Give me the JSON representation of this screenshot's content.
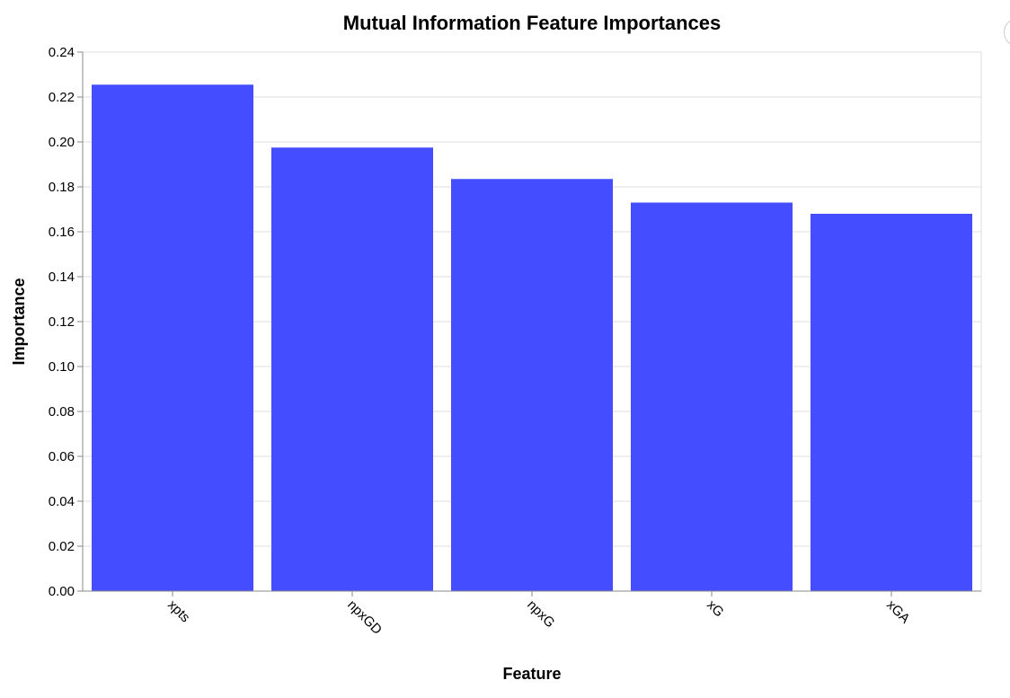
{
  "chart_data": {
    "type": "bar",
    "title": "Mutual Information Feature Importances",
    "xlabel": "Feature",
    "ylabel": "Importance",
    "categories": [
      "xpts",
      "npxGD",
      "npxG",
      "xG",
      "xGA"
    ],
    "values": [
      0.2255,
      0.1975,
      0.1835,
      0.173,
      0.168
    ],
    "ylim": [
      0,
      0.24
    ],
    "yticks": [
      "0.00",
      "0.02",
      "0.04",
      "0.06",
      "0.08",
      "0.10",
      "0.12",
      "0.14",
      "0.16",
      "0.18",
      "0.20",
      "0.22",
      "0.24"
    ],
    "bar_color": "#4049ff",
    "grid": true
  },
  "actions_icon": "actions-menu-icon"
}
